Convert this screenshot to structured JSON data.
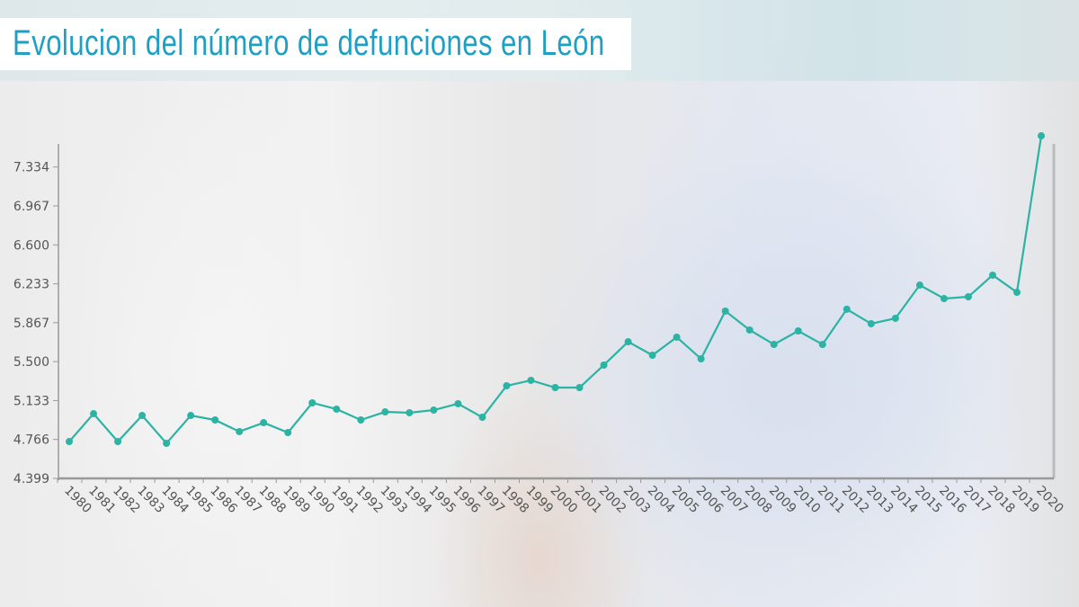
{
  "title": "Evolucion del número de defunciones en León",
  "chart_data": {
    "type": "line",
    "title": "Evolucion del número de defunciones en León",
    "xlabel": "",
    "ylabel": "",
    "x": [
      1980,
      1981,
      1982,
      1983,
      1984,
      1985,
      1986,
      1987,
      1988,
      1989,
      1990,
      1991,
      1992,
      1993,
      1994,
      1995,
      1996,
      1997,
      1998,
      1999,
      2000,
      2001,
      2002,
      2003,
      2004,
      2005,
      2006,
      2007,
      2008,
      2009,
      2010,
      2011,
      2012,
      2013,
      2014,
      2015,
      2016,
      2017,
      2018,
      2019,
      2020
    ],
    "values": [
      4746,
      5009,
      4746,
      4992,
      4730,
      4992,
      4950,
      4840,
      4924,
      4831,
      5111,
      5052,
      4950,
      5026,
      5018,
      5043,
      5103,
      4975,
      5272,
      5323,
      5255,
      5255,
      5467,
      5687,
      5560,
      5730,
      5526,
      5976,
      5798,
      5662,
      5789,
      5662,
      5993,
      5857,
      5908,
      6221,
      6094,
      6111,
      6315,
      6153,
      7628
    ],
    "ylim": [
      4399,
      7700
    ],
    "yticks": [
      4399,
      4766,
      5133,
      5500,
      5867,
      6233,
      6600,
      6967,
      7334
    ],
    "ytick_labels": [
      "4.399",
      "4.766",
      "5.133",
      "5.500",
      "5.867",
      "6.233",
      "6.600",
      "6.967",
      "7.334"
    ],
    "grid": false,
    "colors": {
      "line": "#2bb3a3",
      "axis": "#999999",
      "title": "#1f9fc4"
    }
  }
}
